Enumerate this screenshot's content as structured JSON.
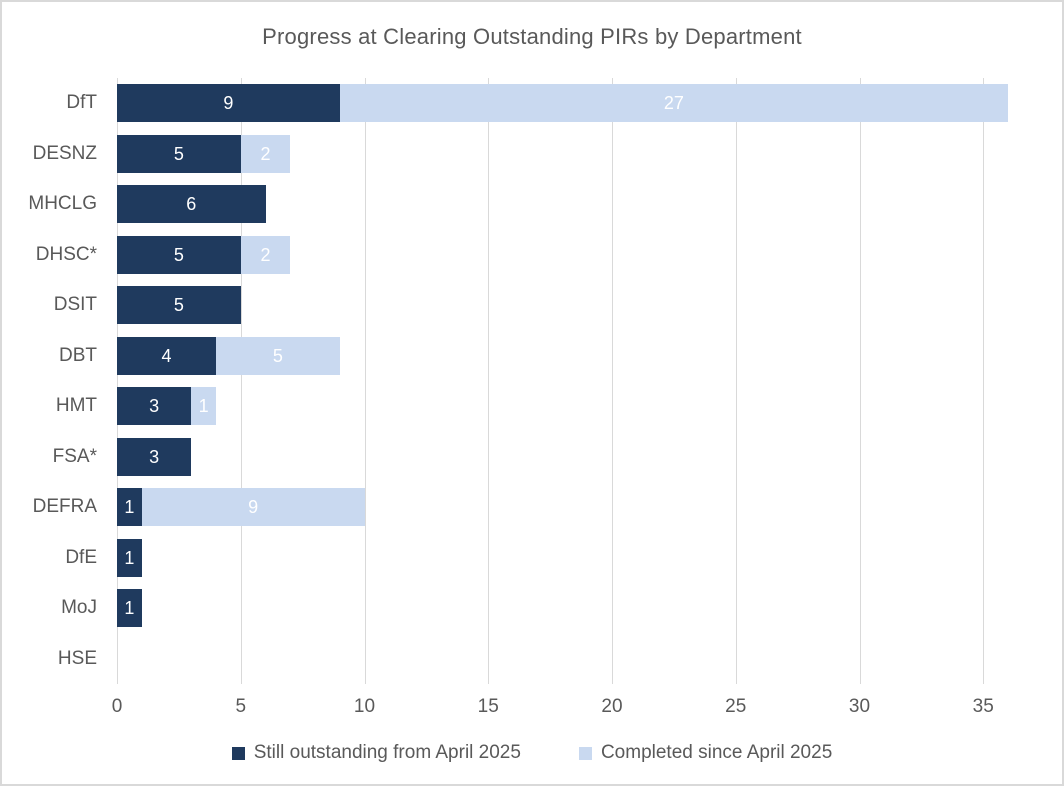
{
  "chart_data": {
    "type": "bar",
    "orientation": "horizontal",
    "stacked": true,
    "title": "Progress at Clearing Outstanding PIRs by Department",
    "categories": [
      "DfT",
      "DESNZ",
      "MHCLG",
      "DHSC*",
      "DSIT",
      "DBT",
      "HMT",
      "FSA*",
      "DEFRA",
      "DfE",
      "MoJ",
      "HSE"
    ],
    "series": [
      {
        "name": "Still outstanding from April 2025",
        "color": "#1F3A5E",
        "values": [
          9,
          5,
          6,
          5,
          5,
          4,
          3,
          3,
          1,
          1,
          1,
          0
        ]
      },
      {
        "name": "Completed since April 2025",
        "color": "#C9D9F0",
        "values": [
          27,
          2,
          0,
          2,
          0,
          5,
          1,
          0,
          9,
          0,
          0,
          0
        ]
      }
    ],
    "totals": [
      36,
      7,
      6,
      7,
      5,
      9,
      4,
      3,
      10,
      1,
      1,
      0
    ],
    "xlim": [
      0,
      36
    ],
    "xticks": [
      0,
      5,
      10,
      15,
      20,
      25,
      30,
      35
    ],
    "grid": true,
    "show_data_labels": true,
    "data_label_color": "#FFFFFF",
    "legend_position": "bottom",
    "axis_text_color": "#595959",
    "gridline_color": "#D9D9D9",
    "background_color": "#FFFFFF",
    "border_color": "#D9D9D9"
  }
}
